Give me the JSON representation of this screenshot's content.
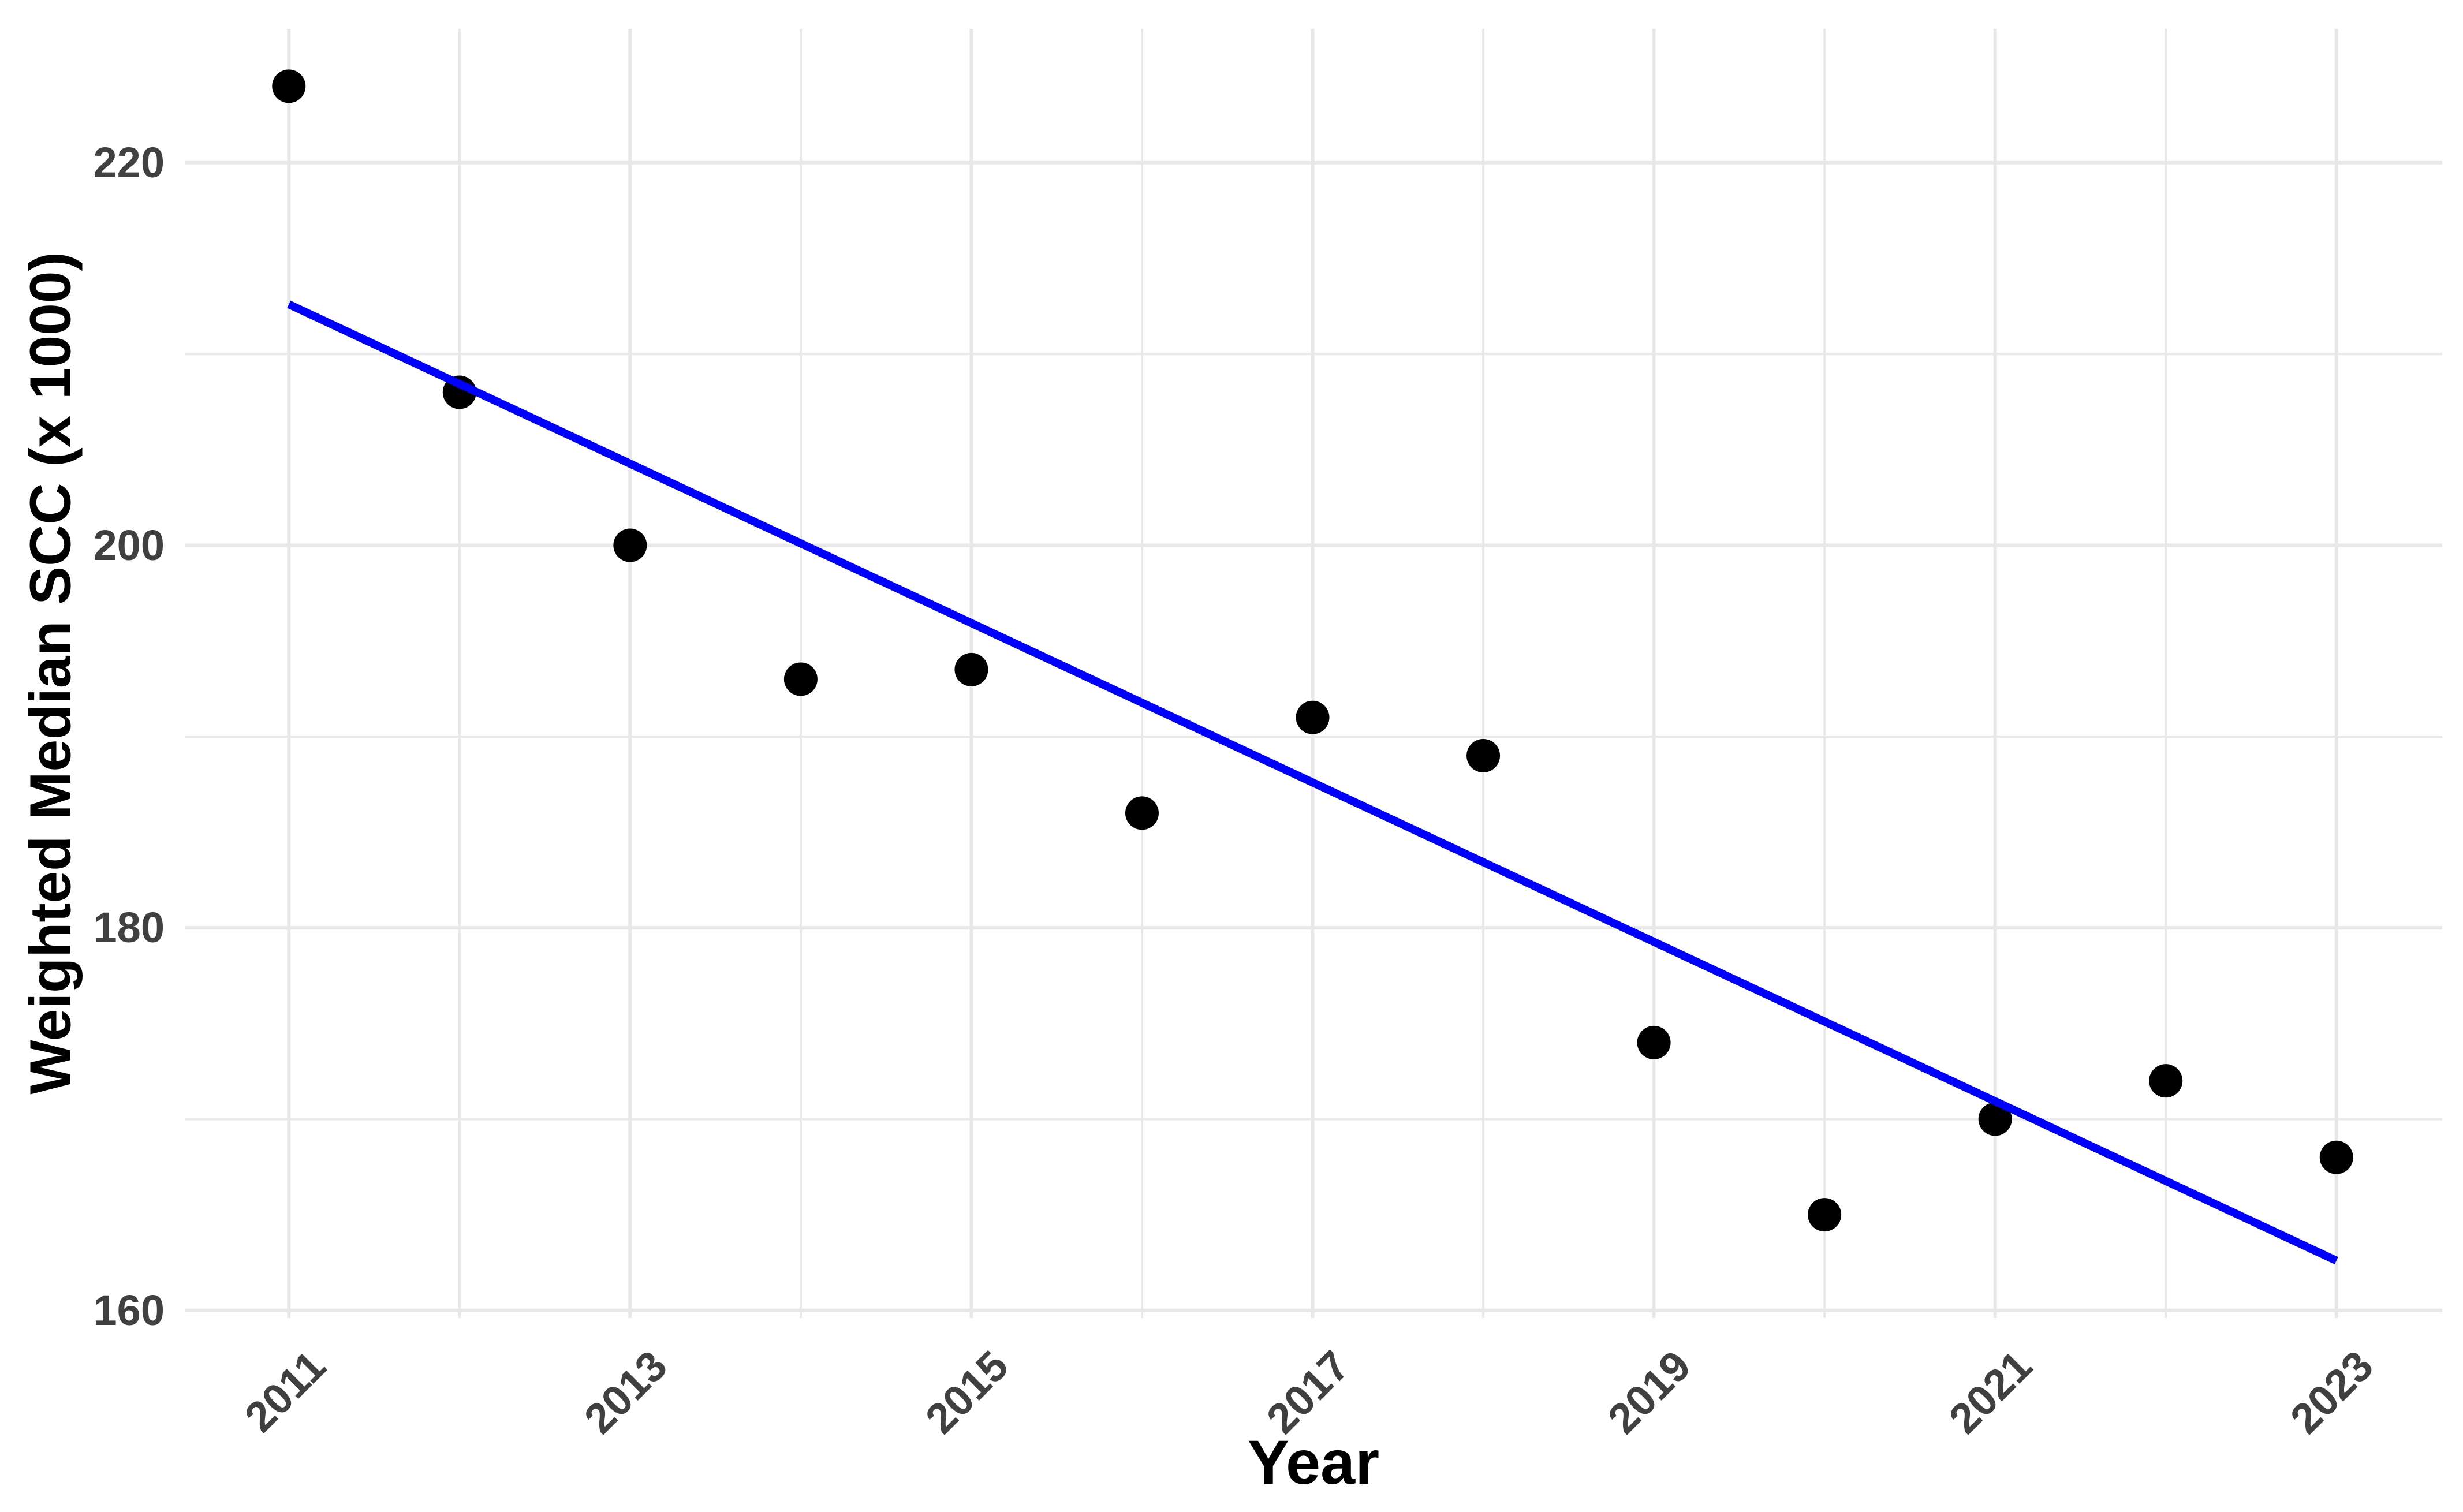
{
  "chart_data": {
    "type": "scatter",
    "xlabel": "Year",
    "ylabel": "Weighted Median SCC (x 1000)",
    "x": [
      2011,
      2012,
      2013,
      2014,
      2015,
      2016,
      2017,
      2018,
      2019,
      2020,
      2021,
      2022,
      2023
    ],
    "y": [
      224,
      208,
      200,
      193,
      193.5,
      186,
      191,
      189,
      174,
      165,
      170,
      172,
      168
    ],
    "trendline": {
      "type": "linear",
      "x0": 2011,
      "y0": 212.6,
      "x1": 2023,
      "y1": 162.6,
      "color": "#0000FF",
      "width": 14
    },
    "point_color": "#000000",
    "point_radius": 29,
    "x_major_ticks": [
      2011,
      2013,
      2015,
      2017,
      2019,
      2021,
      2023
    ],
    "x_minor_ticks": [
      2012,
      2014,
      2016,
      2018,
      2020,
      2022
    ],
    "y_major_ticks": [
      160,
      180,
      200,
      220
    ],
    "y_minor_ticks": [
      170,
      190,
      210
    ],
    "xlim": [
      2010.39,
      2023.62
    ],
    "ylim": [
      159.6,
      227.0
    ],
    "grid": true,
    "grid_color": "#E8E8E8",
    "tick_label_color": "#404040",
    "axis_title_color": "#000000",
    "background": "#FFFFFF",
    "x_tick_angle": -45,
    "legend": "none"
  }
}
